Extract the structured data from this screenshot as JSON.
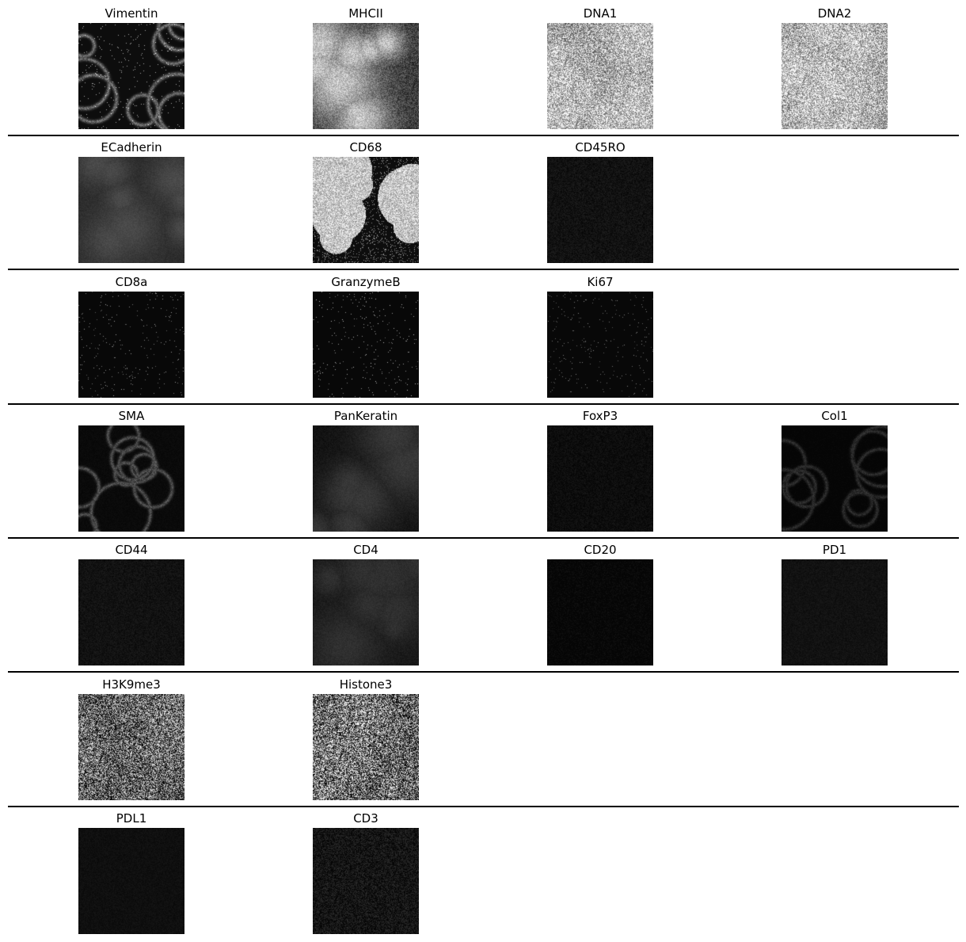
{
  "rows": [
    {
      "panels": [
        {
          "title": "Vimentin",
          "column": 0,
          "mean_intensity": 0.13,
          "contrast": 0.55,
          "texture": "sparse-membrane",
          "seed": 11
        },
        {
          "title": "MHCII",
          "column": 1,
          "mean_intensity": 0.38,
          "contrast": 0.55,
          "texture": "blobs",
          "seed": 12
        },
        {
          "title": "DNA1",
          "column": 2,
          "mean_intensity": 0.62,
          "contrast": 0.35,
          "texture": "dense-speckle",
          "seed": 13
        },
        {
          "title": "DNA2",
          "column": 3,
          "mean_intensity": 0.64,
          "contrast": 0.35,
          "texture": "dense-speckle",
          "seed": 14
        }
      ]
    },
    {
      "panels": [
        {
          "title": "ECadherin",
          "column": 0,
          "mean_intensity": 0.17,
          "contrast": 0.12,
          "texture": "blobs-faint",
          "seed": 21
        },
        {
          "title": "CD68",
          "column": 1,
          "mean_intensity": 0.32,
          "contrast": 0.8,
          "texture": "bright-patches",
          "seed": 22
        },
        {
          "title": "CD45RO",
          "column": 2,
          "mean_intensity": 0.07,
          "contrast": 0.1,
          "texture": "faint-speckle",
          "seed": 23
        }
      ]
    },
    {
      "panels": [
        {
          "title": "CD8a",
          "column": 0,
          "mean_intensity": 0.03,
          "contrast": 0.6,
          "texture": "sparse-dots",
          "seed": 31
        },
        {
          "title": "GranzymeB",
          "column": 1,
          "mean_intensity": 0.03,
          "contrast": 0.7,
          "texture": "sparse-dots",
          "seed": 32
        },
        {
          "title": "Ki67",
          "column": 2,
          "mean_intensity": 0.03,
          "contrast": 0.5,
          "texture": "sparse-dots",
          "seed": 33
        }
      ]
    },
    {
      "panels": [
        {
          "title": "SMA",
          "column": 0,
          "mean_intensity": 0.08,
          "contrast": 0.35,
          "texture": "membrane",
          "seed": 41
        },
        {
          "title": "PanKeratin",
          "column": 1,
          "mean_intensity": 0.07,
          "contrast": 0.15,
          "texture": "blobs-faint",
          "seed": 42
        },
        {
          "title": "FoxP3",
          "column": 2,
          "mean_intensity": 0.05,
          "contrast": 0.08,
          "texture": "faint-speckle",
          "seed": 43
        },
        {
          "title": "Col1",
          "column": 3,
          "mean_intensity": 0.04,
          "contrast": 0.2,
          "texture": "membrane",
          "seed": 44
        }
      ]
    },
    {
      "panels": [
        {
          "title": "CD44",
          "column": 0,
          "mean_intensity": 0.07,
          "contrast": 0.08,
          "texture": "faint-speckle",
          "seed": 51
        },
        {
          "title": "CD4",
          "column": 1,
          "mean_intensity": 0.09,
          "contrast": 0.1,
          "texture": "blobs-faint",
          "seed": 52
        },
        {
          "title": "CD20",
          "column": 2,
          "mean_intensity": 0.02,
          "contrast": 0.1,
          "texture": "faint-speckle",
          "seed": 53
        },
        {
          "title": "PD1",
          "column": 3,
          "mean_intensity": 0.07,
          "contrast": 0.06,
          "texture": "faint-speckle",
          "seed": 54
        }
      ]
    },
    {
      "panels": [
        {
          "title": "H3K9me3",
          "column": 0,
          "mean_intensity": 0.3,
          "contrast": 0.55,
          "texture": "dense-speckle",
          "seed": 61
        },
        {
          "title": "Histone3",
          "column": 1,
          "mean_intensity": 0.34,
          "contrast": 0.6,
          "texture": "dense-speckle",
          "seed": 62
        }
      ]
    },
    {
      "panels": [
        {
          "title": "PDL1",
          "column": 0,
          "mean_intensity": 0.06,
          "contrast": 0.05,
          "texture": "faint-speckle",
          "seed": 71
        },
        {
          "title": "CD3",
          "column": 1,
          "mean_intensity": 0.08,
          "contrast": 0.2,
          "texture": "faint-speckle",
          "seed": 72
        }
      ]
    }
  ]
}
